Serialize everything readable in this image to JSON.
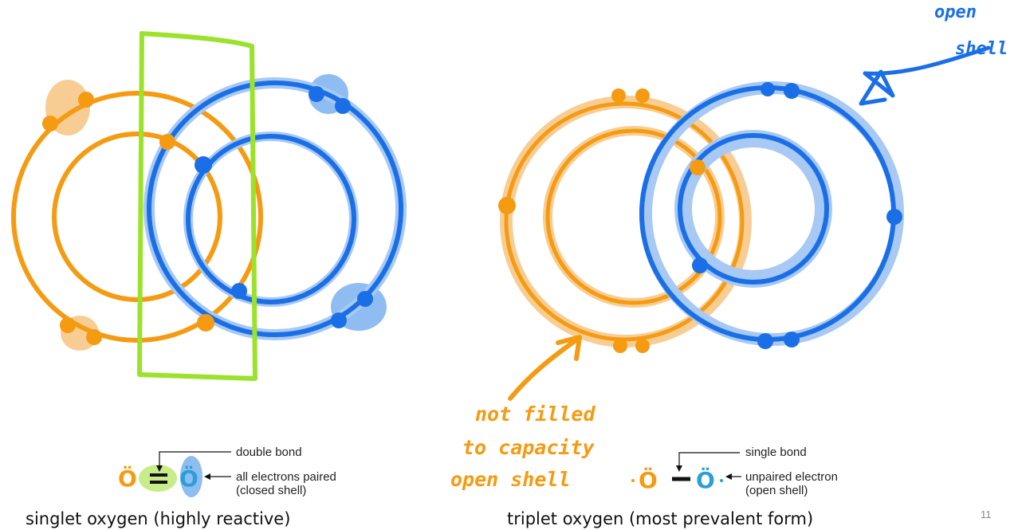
{
  "singlet": {
    "labels": [
      "double bond",
      "all electrons paired",
      "(closed shell)"
    ],
    "atoms": [
      "Ö",
      "Ö"
    ],
    "caption": "singlet oxygen (highly reactive)"
  },
  "triplet": {
    "labels": [
      "single bond",
      "unpaired electron",
      "(open shell)"
    ],
    "atoms": [
      "Ö",
      "Ö"
    ],
    "caption": "triplet oxygen (most prevalent form)"
  },
  "annotations": {
    "open_shell": [
      "open",
      "shell"
    ],
    "not_filled": [
      "not filled",
      "to capacity",
      "open shell"
    ]
  },
  "page_number": "11"
}
